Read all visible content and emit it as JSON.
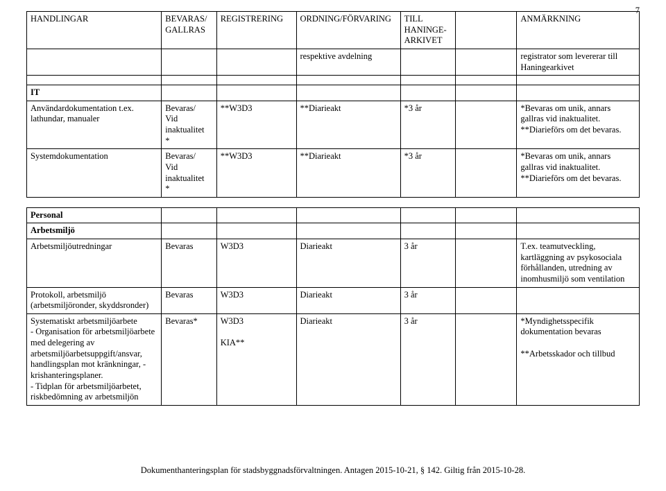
{
  "page_number": "7",
  "header": {
    "c0": "HANDLINGAR",
    "c1": "BEVARAS/\nGALLRAS",
    "c2": "REGISTRERING",
    "c3": "ORDNING/FÖRVARING",
    "c4": "TILL\nHANINGE-\nARKIVET",
    "c5": "",
    "c6": "ANMÄRKNING"
  },
  "top_rows": [
    {
      "c0": "",
      "c1": "",
      "c2": "",
      "c3": "respektive avdelning",
      "c4": "",
      "c5": "",
      "c6": "registrator som levererar till Haningearkivet"
    }
  ],
  "section_it": {
    "heading": "IT",
    "rows": [
      {
        "c0": "Användardokumentation t.ex. lathundar, manualer",
        "c1": "Bevaras/\nVid\ninaktualitet\n*",
        "c2": "**W3D3",
        "c3": "**Diarieakt",
        "c4": "*3 år",
        "c5": "",
        "c6": "*Bevaras om unik, annars gallras vid inaktualitet.\n**Diarieförs om det bevaras."
      },
      {
        "c0": "Systemdokumentation",
        "c1": "Bevaras/\nVid\ninaktualitet\n*",
        "c2": "**W3D3",
        "c3": "**Diarieakt",
        "c4": "*3 år",
        "c5": "",
        "c6": "*Bevaras om unik, annars gallras vid inaktualitet.\n**Diarieförs om det bevaras."
      }
    ]
  },
  "section_personal": {
    "heading": "Personal",
    "subheading": "Arbetsmiljö",
    "rows": [
      {
        "c0": "Arbetsmiljöutredningar",
        "c1": "Bevaras",
        "c2": "W3D3",
        "c3": "Diarieakt",
        "c4": "3 år",
        "c5": "",
        "c6": "T.ex. teamutveckling, kartläggning av psykosociala förhållanden, utredning av inomhusmiljö som ventilation"
      },
      {
        "c0": "Protokoll, arbetsmiljö (arbetsmiljöronder, skyddsronder)",
        "c1": "Bevaras",
        "c2": "W3D3",
        "c3": "Diarieakt",
        "c4": "3 år",
        "c5": "",
        "c6": ""
      },
      {
        "c0": "Systematiskt arbetsmiljöarbete\n- Organisation för arbetsmiljöarbete\nmed delegering av arbetsmiljöarbetsuppgift/ansvar, handlingsplan mot kränkningar, - krishanteringsplaner.\n- Tidplan för arbetsmiljöarbetet, riskbedömning av arbetsmiljön",
        "c1": "Bevaras*",
        "c2": "W3D3\n\nKIA**",
        "c3": "Diarieakt",
        "c4": "3 år",
        "c5": "",
        "c6": "*Myndighetsspecifik dokumentation bevaras\n\n**Arbetsskador och tillbud"
      }
    ]
  },
  "footer": "Dokumenthanteringsplan för stadsbyggnadsförvaltningen. Antagen 2015-10-21, § 142. Giltig från 2015-10-28."
}
